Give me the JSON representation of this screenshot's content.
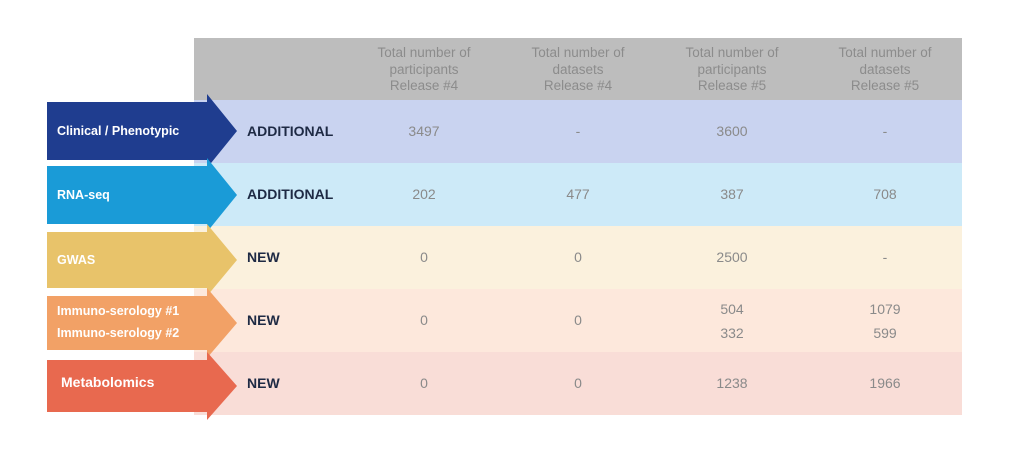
{
  "header": {
    "columns": [
      "Total number of participants Release #4",
      "Total number of datasets Release #4",
      "Total number of participants Release #5",
      "Total number of datasets Release #5"
    ],
    "lines": [
      [
        "Total number of",
        "participants",
        "Release #4"
      ],
      [
        "Total number of",
        "datasets",
        "Release #4"
      ],
      [
        "Total number of",
        "participants",
        "Release #5"
      ],
      [
        "Total number of",
        "datasets",
        "Release #5"
      ]
    ]
  },
  "rows": [
    {
      "labels": [
        "Clinical / Phenotypic"
      ],
      "status": "ADDITIONAL",
      "arrow_color": "#1f3d8f",
      "bg_color": "#c9d3f0",
      "values": [
        [
          "3497"
        ],
        [
          "-"
        ],
        [
          "3600"
        ],
        [
          "-"
        ]
      ]
    },
    {
      "labels": [
        "RNA-seq"
      ],
      "status": "ADDITIONAL",
      "arrow_color": "#1a9bd7",
      "bg_color": "#cdeaf8",
      "values": [
        [
          "202"
        ],
        [
          "477"
        ],
        [
          "387"
        ],
        [
          "708"
        ]
      ]
    },
    {
      "labels": [
        "GWAS"
      ],
      "status": "NEW",
      "arrow_color": "#e8c36a",
      "bg_color": "#fbf1dd",
      "values": [
        [
          "0"
        ],
        [
          "0"
        ],
        [
          "2500"
        ],
        [
          "-"
        ]
      ]
    },
    {
      "labels": [
        "Immuno-serology #1",
        "Immuno-serology #2"
      ],
      "status": "NEW",
      "arrow_color": "#f2a166",
      "bg_color": "#fde8dc",
      "values": [
        [
          "0"
        ],
        [
          "0"
        ],
        [
          "504",
          "332"
        ],
        [
          "1079",
          "599"
        ]
      ]
    },
    {
      "labels": [
        "Metabolomics"
      ],
      "status": "NEW",
      "arrow_color": "#e8694f",
      "bg_color": "#f9ddd7",
      "values": [
        [
          "0"
        ],
        [
          "0"
        ],
        [
          "1238"
        ],
        [
          "1966"
        ]
      ]
    }
  ]
}
